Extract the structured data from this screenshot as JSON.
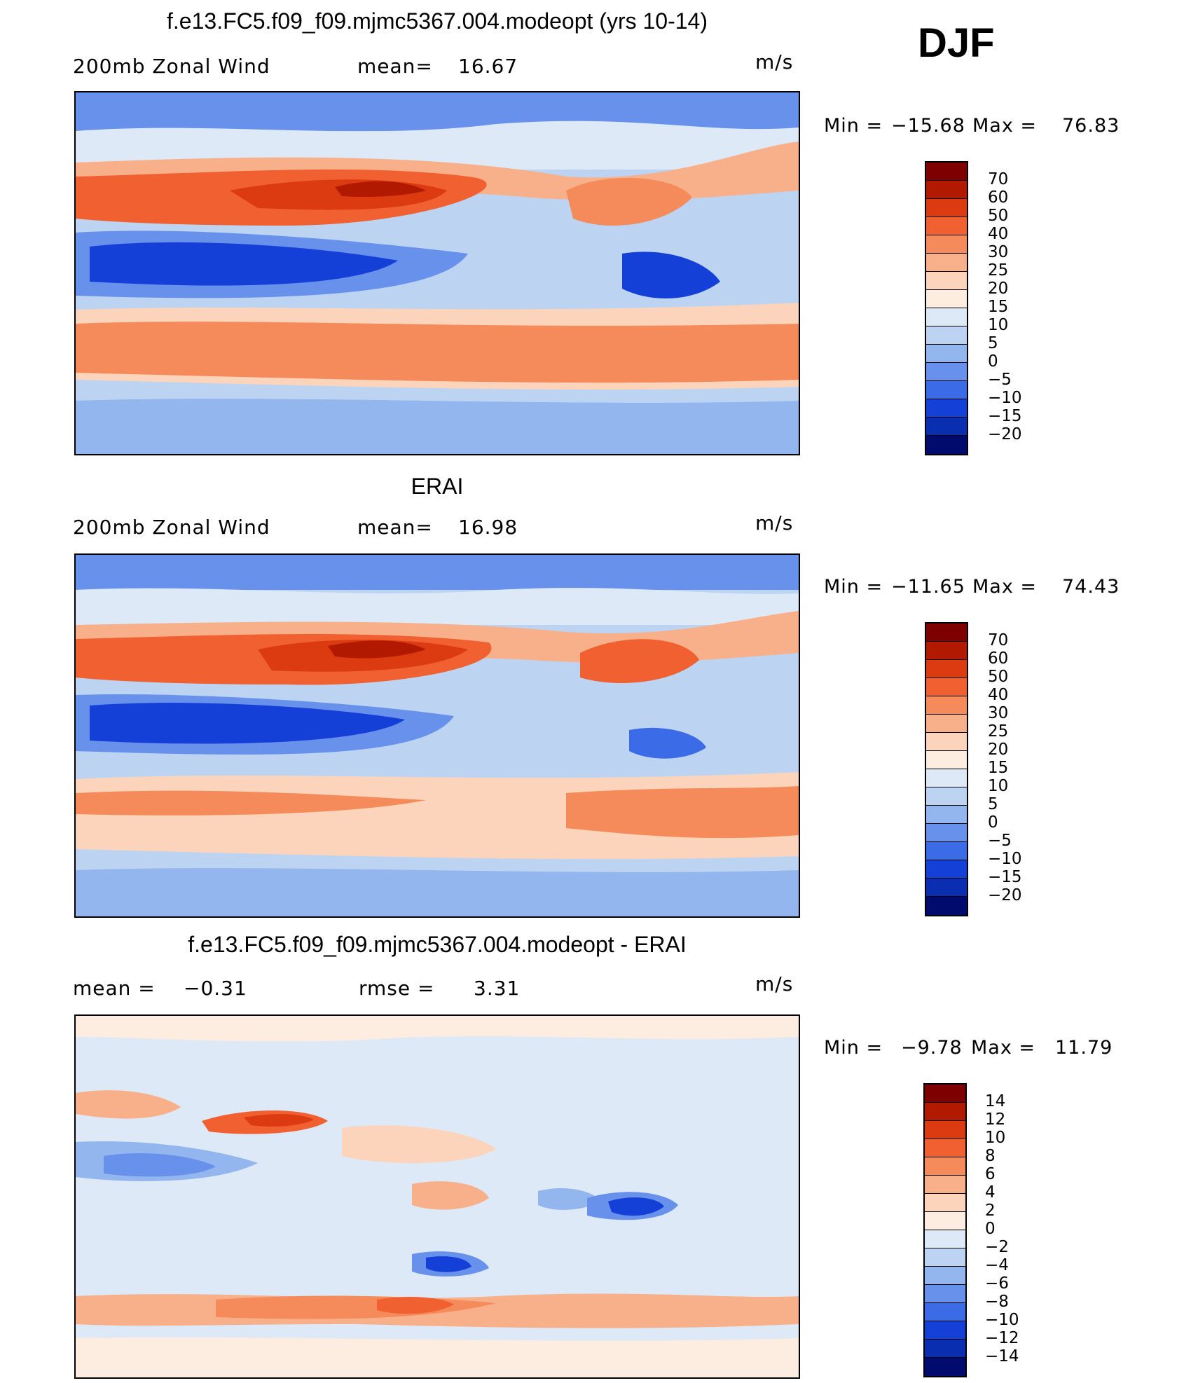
{
  "season": "DJF",
  "panels": [
    {
      "title": "f.e13.FC5.f09_f09.mjmc5367.004.modeopt (yrs 10-14)",
      "left_label": "200mb  Zonal  Wind",
      "stat_label": "mean=",
      "stat_value": "16.67",
      "units": "m/s",
      "min_label": "Min  =",
      "min_value": "−15.68",
      "max_label": "Max  =",
      "max_value": "76.83",
      "colorbar_labels": [
        "70",
        "60",
        "50",
        "40",
        "30",
        "25",
        "20",
        "15",
        "10",
        "5",
        "0",
        "−5",
        "−10",
        "−15",
        "−20"
      ]
    },
    {
      "title": "ERAI",
      "left_label": "200mb  Zonal  Wind",
      "stat_label": "mean=",
      "stat_value": "16.98",
      "units": "m/s",
      "min_label": "Min  =",
      "min_value": "−11.65",
      "max_label": "Max  =",
      "max_value": "74.43",
      "colorbar_labels": [
        "70",
        "60",
        "50",
        "40",
        "30",
        "25",
        "20",
        "15",
        "10",
        "5",
        "0",
        "−5",
        "−10",
        "−15",
        "−20"
      ]
    },
    {
      "title": "f.e13.FC5.f09_f09.mjmc5367.004.modeopt - ERAI",
      "left_label": "mean  =",
      "left_value": "−0.31",
      "stat_label": "rmse  =",
      "stat_value": "3.31",
      "units": "m/s",
      "min_label": "Min  =",
      "min_value": "−9.78",
      "max_label": "Max  =",
      "max_value": "11.79",
      "colorbar_labels": [
        "14",
        "12",
        "10",
        "8",
        "6",
        "4",
        "2",
        "0",
        "−2",
        "−4",
        "−6",
        "−8",
        "−10",
        "−12",
        "−14"
      ]
    }
  ],
  "colors": {
    "field_palette": [
      "#7f0000",
      "#b21a00",
      "#dc3a10",
      "#f06030",
      "#f58a5a",
      "#f8b08a",
      "#fcd4bb",
      "#fdece0",
      "#dde9f7",
      "#bcd3f2",
      "#93b6ef",
      "#6891eb",
      "#3b6be6",
      "#1540d8",
      "#0a2eb0",
      "#041c8c",
      "#000b6e"
    ],
    "continent_outline": "#000000"
  }
}
